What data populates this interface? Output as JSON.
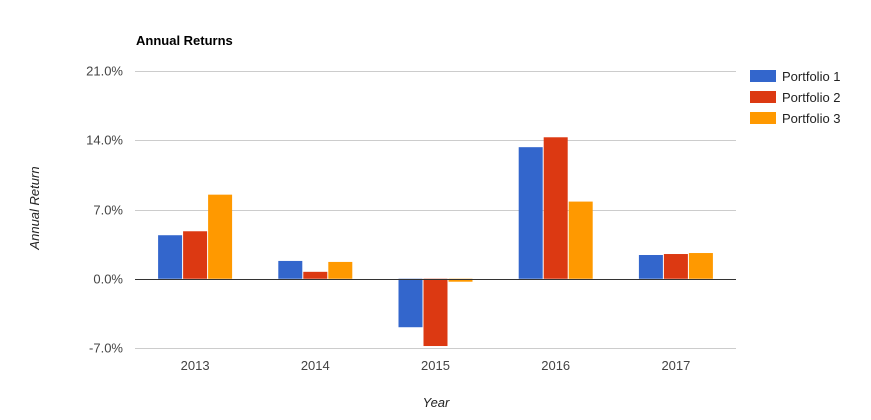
{
  "chart_data": {
    "type": "bar",
    "title": "Annual Returns",
    "xlabel": "Year",
    "ylabel": "Annual Return",
    "categories": [
      "2013",
      "2014",
      "2015",
      "2016",
      "2017"
    ],
    "series": [
      {
        "name": "Portfolio 1",
        "color": "#3366cc",
        "values": [
          4.4,
          1.8,
          -4.9,
          13.3,
          2.4
        ]
      },
      {
        "name": "Portfolio 2",
        "color": "#dc3912",
        "values": [
          4.8,
          0.7,
          -6.8,
          14.3,
          2.5
        ]
      },
      {
        "name": "Portfolio 3",
        "color": "#ff9900",
        "values": [
          8.5,
          1.7,
          -0.3,
          7.8,
          2.6
        ]
      }
    ],
    "ylim": [
      -7.0,
      21.0
    ],
    "yticks": [
      -7.0,
      0.0,
      7.0,
      14.0,
      21.0
    ],
    "ytick_labels": [
      "-7.0%",
      "0.0%",
      "7.0%",
      "14.0%",
      "21.0%"
    ],
    "grid": true,
    "legend_position": "right"
  }
}
